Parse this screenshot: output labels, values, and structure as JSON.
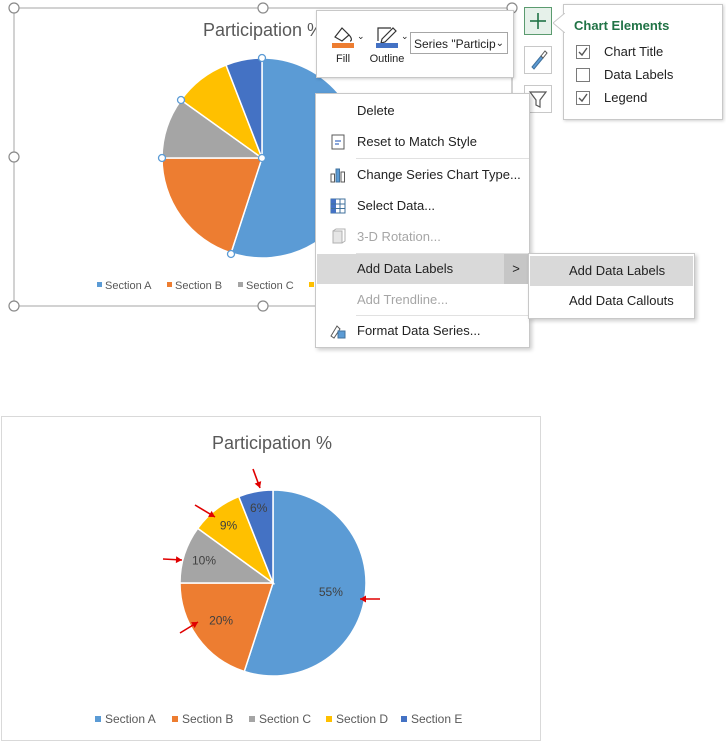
{
  "top_chart": {
    "title": "Participation %",
    "legend": [
      "Section A",
      "Section B",
      "Section C"
    ],
    "colors": {
      "a": "#5B9BD5",
      "b": "#ED7D31",
      "c": "#A5A5A5",
      "d": "#FFC000",
      "e": "#4472C4"
    }
  },
  "mini_toolbar": {
    "fill_label": "Fill",
    "outline_label": "Outline",
    "series_select": "Series \"Particip"
  },
  "side_buttons": {
    "elements": "plus-icon",
    "styles": "brush-icon",
    "filters": "funnel-icon"
  },
  "chart_elements": {
    "title": "Chart Elements",
    "items": [
      {
        "label": "Chart Title",
        "checked": true
      },
      {
        "label": "Data Labels",
        "checked": false
      },
      {
        "label": "Legend",
        "checked": true
      }
    ]
  },
  "context_menu": {
    "items": [
      {
        "label": "Delete",
        "disabled": false
      },
      {
        "label": "Reset to Match Style",
        "disabled": false
      },
      {
        "label": "Change Series Chart Type...",
        "disabled": false
      },
      {
        "label": "Select Data...",
        "disabled": false
      },
      {
        "label": "3-D Rotation...",
        "disabled": true
      },
      {
        "label": "Add Data Labels",
        "disabled": false,
        "highlighted": true
      },
      {
        "label": "Add Trendline...",
        "disabled": true
      },
      {
        "label": "Format Data Series...",
        "disabled": false
      }
    ]
  },
  "submenu": {
    "items": [
      {
        "label": "Add Data Labels",
        "highlighted": true
      },
      {
        "label": "Add Data Callouts",
        "highlighted": false
      }
    ]
  },
  "chart_data": {
    "type": "pie",
    "title": "Participation %",
    "categories": [
      "Section A",
      "Section B",
      "Section C",
      "Section D",
      "Section E"
    ],
    "values": [
      55,
      20,
      10,
      9,
      6
    ],
    "data_labels": [
      "55%",
      "20%",
      "10%",
      "9%",
      "6%"
    ],
    "colors": [
      "#5B9BD5",
      "#ED7D31",
      "#A5A5A5",
      "#FFC000",
      "#4472C4"
    ],
    "legend_position": "bottom",
    "annotation_color": "#E00000"
  }
}
